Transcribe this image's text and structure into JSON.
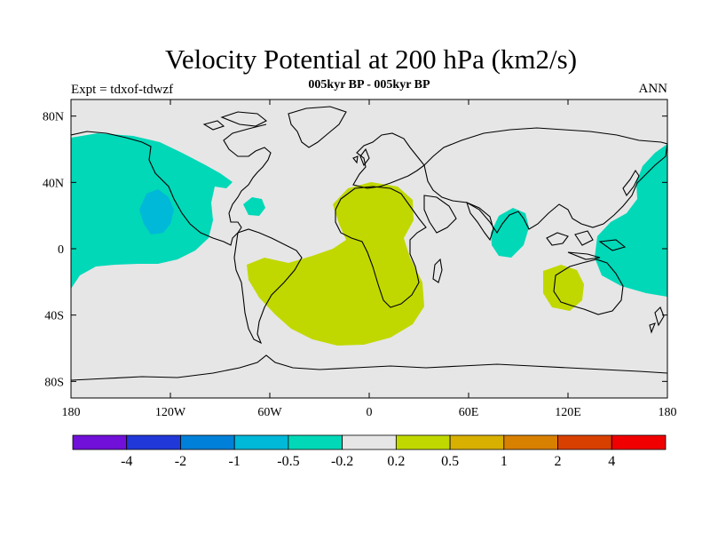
{
  "figure": {
    "title": "Velocity Potential at 200 hPa (km2/s)",
    "subtitle": "005kyr BP - 005kyr BP",
    "left_label": "Expt = tdxof-tdwzf",
    "right_label": "ANN"
  },
  "map": {
    "projection": "cylindrical equidistant",
    "lon_range": [
      -180,
      180
    ],
    "lat_range": [
      -90,
      90
    ],
    "background_color": "#e6e6e6",
    "coastline_color": "#000000",
    "lat_ticks": [
      {
        "value": 80,
        "label": "80N"
      },
      {
        "value": 40,
        "label": "40N"
      },
      {
        "value": 0,
        "label": "0"
      },
      {
        "value": -40,
        "label": "40S"
      },
      {
        "value": -80,
        "label": "80S"
      }
    ],
    "lon_ticks": [
      {
        "value": -180,
        "label": "180"
      },
      {
        "value": -120,
        "label": "120W"
      },
      {
        "value": -60,
        "label": "60W"
      },
      {
        "value": 0,
        "label": "0"
      },
      {
        "value": 60,
        "label": "60E"
      },
      {
        "value": 120,
        "label": "120E"
      },
      {
        "value": 180,
        "label": "180"
      }
    ]
  },
  "chart_data": {
    "type": "heatmap",
    "title": "Velocity Potential at 200 hPa (km2/s)",
    "variable": "velocity potential difference",
    "fields": [
      {
        "name": "north-pacific-negative",
        "level": "-0.5 to -0.2",
        "color": "#00d8b8"
      },
      {
        "name": "east-pacific-core",
        "level": "-1 to -0.5",
        "color": "#00b8d8"
      },
      {
        "name": "caribbean-negative",
        "level": "-0.5 to -0.2",
        "color": "#00d8b8"
      },
      {
        "name": "indian-ocean-negative",
        "level": "-0.5 to -0.2",
        "color": "#00d8b8"
      },
      {
        "name": "west-pacific-negative",
        "level": "-0.5 to -0.2",
        "color": "#00d8b8"
      },
      {
        "name": "africa-atlantic-positive",
        "level": "0.2 to 0.5",
        "color": "#c0d800"
      },
      {
        "name": "australia-positive",
        "level": "0.2 to 0.5",
        "color": "#c0d800"
      }
    ]
  },
  "colorbar": {
    "colors": [
      "#7010d8",
      "#2038d8",
      "#0080d8",
      "#00b8d8",
      "#00d8b8",
      "#e6e6e6",
      "#c0d800",
      "#d8b000",
      "#d88000",
      "#d84000",
      "#f00000"
    ],
    "labels": [
      "-4",
      "-2",
      "-1",
      "-0.5",
      "-0.2",
      "0.2",
      "0.5",
      "1",
      "2",
      "4"
    ]
  }
}
